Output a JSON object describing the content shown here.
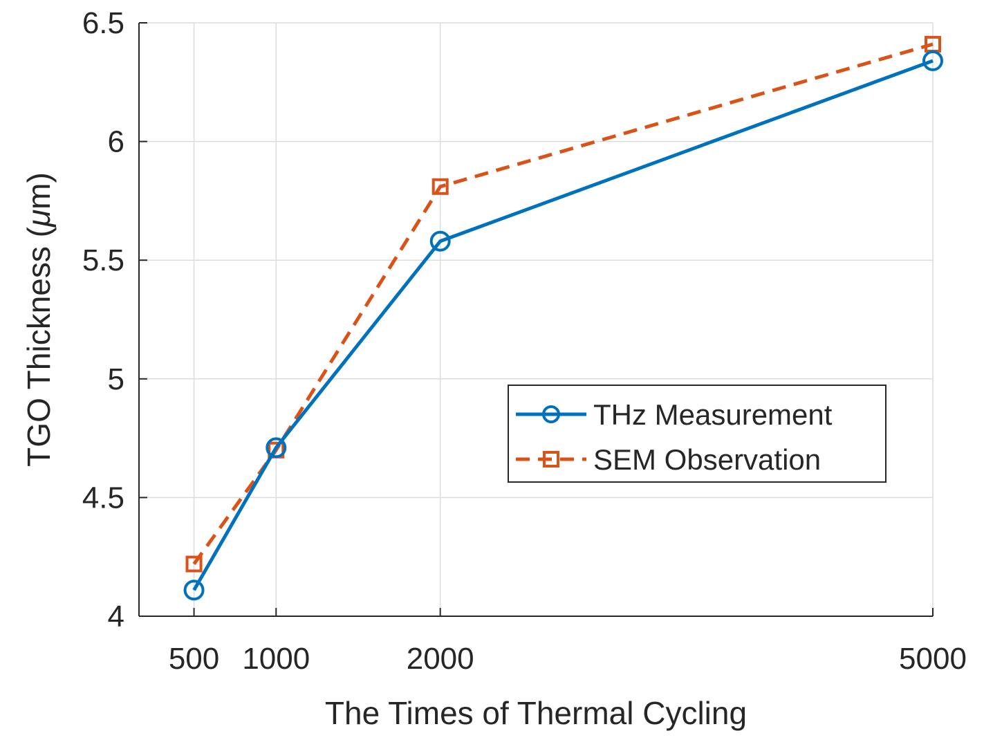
{
  "chart_data": {
    "type": "line",
    "xlabel": "The Times of Thermal Cycling",
    "ylabel": "TGO Thickness (",
    "ylabel_symbol": "μ",
    "ylabel_unit": "m)",
    "xlim": [
      0,
      5000
    ],
    "ylim": [
      4,
      6.5
    ],
    "xticks": [
      500,
      1000,
      2000,
      5000
    ],
    "yticks": [
      4,
      4.5,
      5,
      5.5,
      6,
      6.5
    ],
    "grid": true,
    "legend_position": "center-right",
    "series": [
      {
        "name": "THz Measurement",
        "x": [
          500,
          1000,
          2000,
          5000
        ],
        "y": [
          4.11,
          4.71,
          5.58,
          6.34
        ],
        "color": "#0072BD",
        "line_style": "solid",
        "marker": "circle"
      },
      {
        "name": "SEM Observation",
        "x": [
          500,
          1000,
          2000,
          5000
        ],
        "y": [
          4.22,
          4.7,
          5.81,
          6.41
        ],
        "color": "#D95319",
        "line_style": "dashed",
        "marker": "square"
      }
    ]
  }
}
